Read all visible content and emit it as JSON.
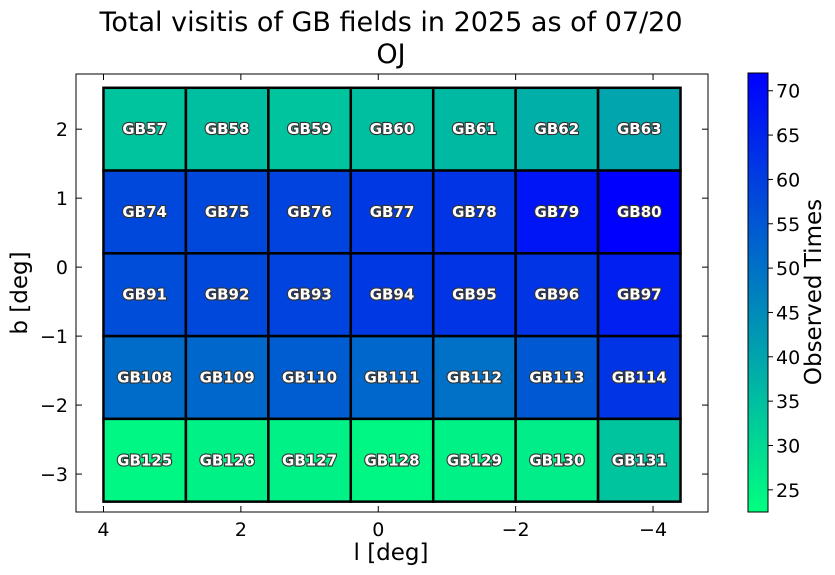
{
  "chart_data": {
    "type": "heatmap",
    "title": "Total visitis of GB fields in 2025 as of 07/20",
    "subtitle": "OJ",
    "xlabel": "l [deg]",
    "ylabel": "b [deg]",
    "xlim": [
      4.4,
      -4.8
    ],
    "ylim": [
      -3.55,
      2.8
    ],
    "xticks": [
      4,
      2,
      0,
      -2,
      -4
    ],
    "xtick_labels": [
      "4",
      "2",
      "0",
      "−2",
      "−4"
    ],
    "yticks": [
      2,
      1,
      0,
      -1,
      -2,
      -3
    ],
    "ytick_labels": [
      "2",
      "1",
      "0",
      "−1",
      "−2",
      "−3"
    ],
    "grid": false,
    "colorbar": {
      "label": "Observed Times",
      "range": [
        22.5,
        72
      ],
      "ticks": [
        25,
        30,
        35,
        40,
        45,
        50,
        55,
        60,
        65,
        70
      ],
      "tick_labels": [
        "25",
        "30",
        "35",
        "40",
        "45",
        "50",
        "55",
        "60",
        "65",
        "70"
      ],
      "colormap": "winter_r",
      "color_low": "#00ff80",
      "color_high": "#0000ff"
    },
    "column_edges": [
      4.0,
      2.8,
      1.6,
      0.4,
      -0.8,
      -2.0,
      -3.2,
      -4.4
    ],
    "row_edges": [
      2.6,
      1.4,
      0.2,
      -1.0,
      -2.2,
      -3.4
    ],
    "rows": [
      {
        "fields": [
          "GB57",
          "GB58",
          "GB59",
          "GB60",
          "GB61",
          "GB62",
          "GB63"
        ],
        "values": [
          34,
          35,
          34,
          35,
          36,
          38,
          40
        ]
      },
      {
        "fields": [
          "GB74",
          "GB75",
          "GB76",
          "GB77",
          "GB78",
          "GB79",
          "GB80"
        ],
        "values": [
          58,
          58,
          59,
          61,
          62,
          68,
          72
        ]
      },
      {
        "fields": [
          "GB91",
          "GB92",
          "GB93",
          "GB94",
          "GB95",
          "GB96",
          "GB97"
        ],
        "values": [
          57,
          58,
          59,
          61,
          62,
          62,
          66
        ]
      },
      {
        "fields": [
          "GB108",
          "GB109",
          "GB110",
          "GB111",
          "GB112",
          "GB113",
          "GB114"
        ],
        "values": [
          51,
          52,
          54,
          52,
          50,
          55,
          62
        ]
      },
      {
        "fields": [
          "GB125",
          "GB126",
          "GB127",
          "GB128",
          "GB129",
          "GB130",
          "GB131"
        ],
        "values": [
          24,
          25,
          25,
          24,
          25,
          26,
          34
        ]
      }
    ]
  }
}
